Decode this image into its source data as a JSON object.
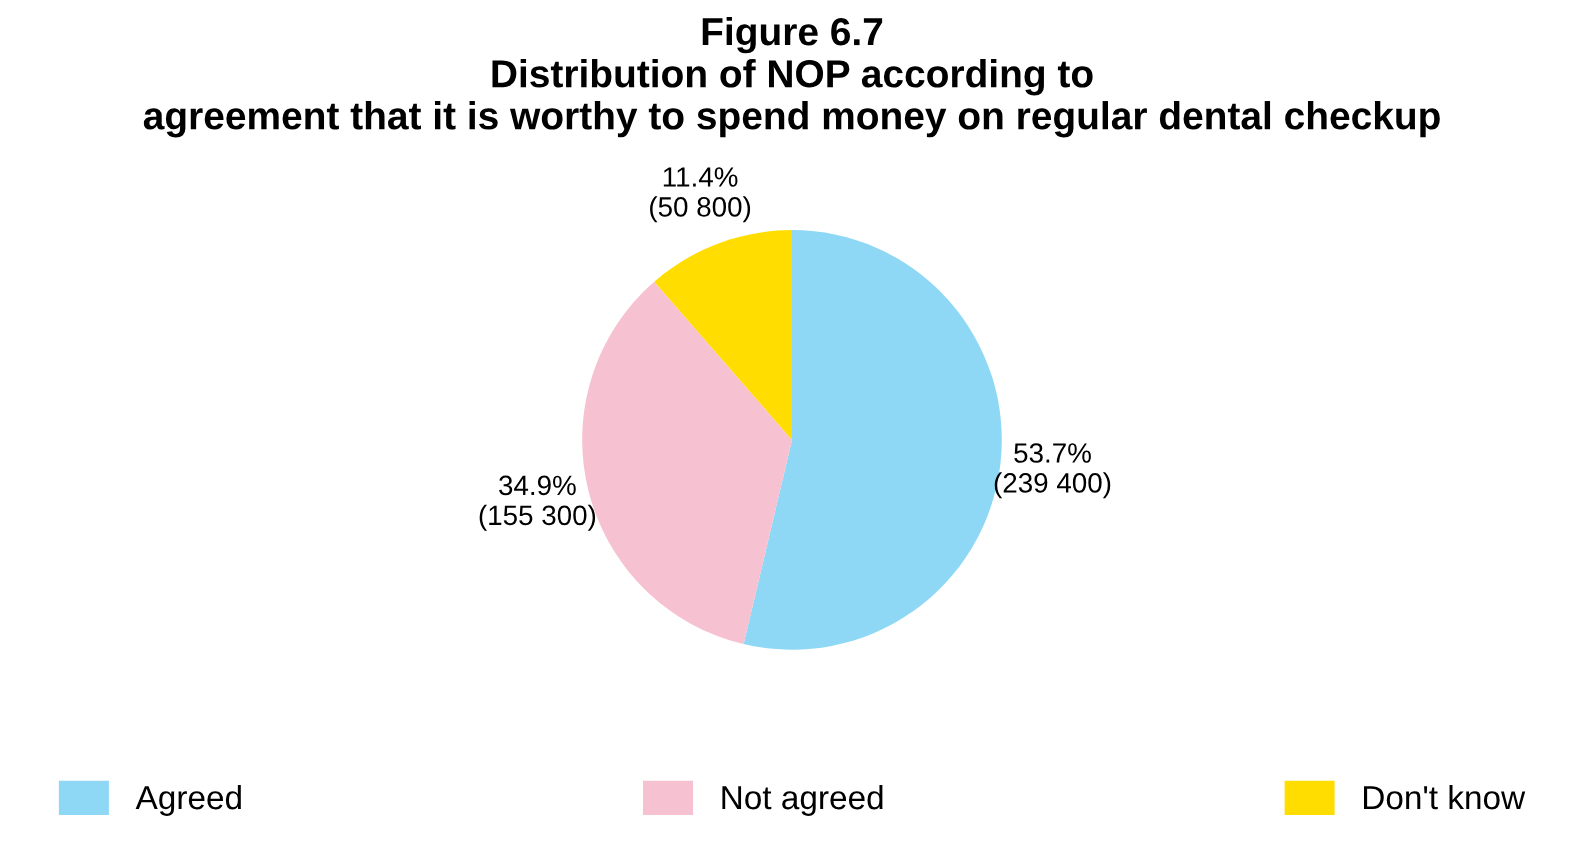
{
  "chart_data": {
    "type": "pie",
    "title": "Figure 6.7\nDistribution of NOP according to\nagreement that it is worthy to spend money on regular dental checkup",
    "categories": [
      "Agreed",
      "Not agreed",
      "Don't know"
    ],
    "values": [
      53.7,
      34.9,
      11.4
    ],
    "value_labels": [
      "53.7%\n(239 400)",
      "34.9%\n(155 300)",
      "11.4%\n(50 800)"
    ],
    "colors": [
      "#8ed8f5",
      "#f6c1d0",
      "#ffdd00"
    ],
    "legend": "bottom"
  }
}
